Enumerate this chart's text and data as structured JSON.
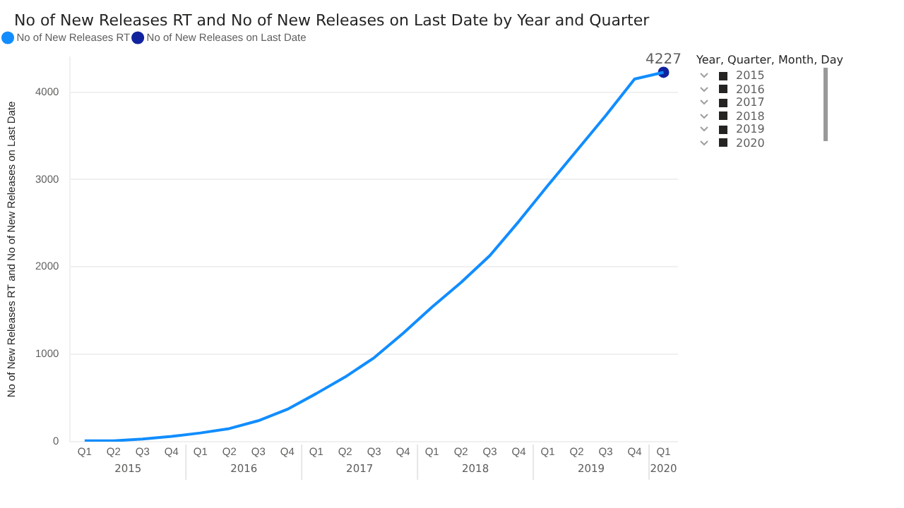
{
  "chart_data": {
    "type": "line",
    "title": "No of New Releases RT and No of New Releases on Last Date by Year and Quarter",
    "ylabel": "No of New Releases RT and No of New Releases on Last Date",
    "categories": [
      "Q1",
      "Q2",
      "Q3",
      "Q4",
      "Q1",
      "Q2",
      "Q3",
      "Q4",
      "Q1",
      "Q2",
      "Q3",
      "Q4",
      "Q1",
      "Q2",
      "Q3",
      "Q4",
      "Q1",
      "Q2",
      "Q3",
      "Q4",
      "Q1"
    ],
    "series": [
      {
        "name": "No of New Releases RT",
        "color": "#118dff",
        "marker": "none",
        "values": [
          10,
          10,
          30,
          60,
          100,
          150,
          240,
          370,
          550,
          740,
          960,
          1240,
          1540,
          1820,
          2130,
          2520,
          2930,
          3330,
          3730,
          4150,
          4227
        ]
      },
      {
        "name": "No of New Releases on Last Date",
        "color": "#12239e",
        "marker": "circle",
        "values": [
          null,
          null,
          null,
          null,
          null,
          null,
          null,
          null,
          null,
          null,
          null,
          null,
          null,
          null,
          null,
          null,
          null,
          null,
          null,
          null,
          4227
        ],
        "value_labels": [
          null,
          null,
          null,
          null,
          null,
          null,
          null,
          null,
          null,
          null,
          null,
          null,
          null,
          null,
          null,
          null,
          null,
          null,
          null,
          null,
          "4227"
        ]
      }
    ],
    "ylim": [
      0,
      4400
    ],
    "yticks": [
      0,
      1000,
      2000,
      3000,
      4000
    ],
    "grid": "y",
    "legend": "top left",
    "annotations": [
      "2015",
      "2016",
      "2017",
      "2018",
      "2019",
      "2020",
      "Year, Quarter, Month, Day",
      "2015",
      "2016",
      "2017",
      "2018",
      "2019",
      "2020"
    ]
  }
}
